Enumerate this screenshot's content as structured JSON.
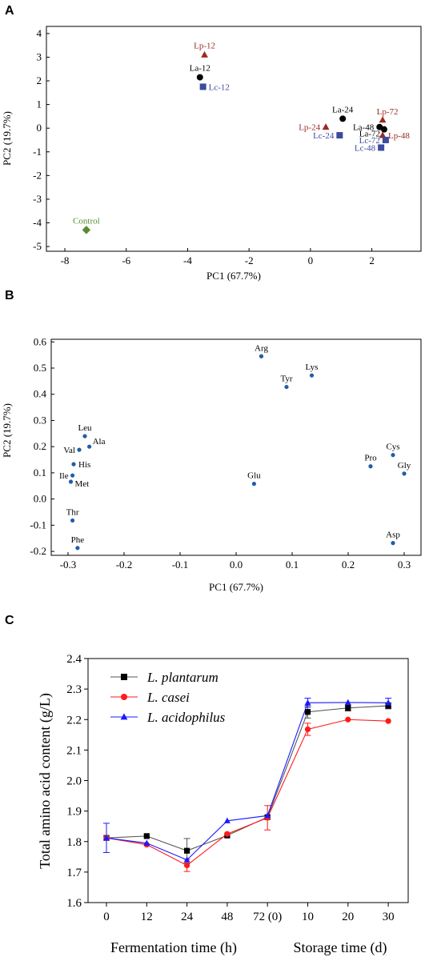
{
  "chart_data": [
    {
      "panel": "A",
      "type": "scatter",
      "xlabel": "PC1 (67.7%)",
      "ylabel": "PC2 (19.7%)",
      "xlim": [
        -8.6,
        3.6
      ],
      "ylim": [
        -5.2,
        4.3
      ],
      "xticks": [
        -8,
        -6,
        -4,
        -2,
        0,
        2
      ],
      "yticks": [
        -5,
        -4,
        -3,
        -2,
        -1,
        0,
        1,
        2,
        3,
        4
      ],
      "grid": false,
      "points": [
        {
          "label": "Lp-12",
          "x": -3.45,
          "y": 3.1,
          "marker": "triangle",
          "color": "#9b2b22",
          "label_pos": "above"
        },
        {
          "label": "La-12",
          "x": -3.6,
          "y": 2.15,
          "marker": "circle",
          "color": "#000000",
          "label_pos": "above"
        },
        {
          "label": "Lc-12",
          "x": -3.5,
          "y": 1.75,
          "marker": "square",
          "color": "#3c4aa0",
          "label_pos": "right"
        },
        {
          "label": "La-24",
          "x": 1.05,
          "y": 0.4,
          "marker": "circle",
          "color": "#000000",
          "label_pos": "above"
        },
        {
          "label": "Lp-24",
          "x": 0.5,
          "y": 0.05,
          "marker": "triangle",
          "color": "#9b2b22",
          "label_pos": "left"
        },
        {
          "label": "Lc-24",
          "x": 0.95,
          "y": -0.3,
          "marker": "square",
          "color": "#3c4aa0",
          "label_pos": "left"
        },
        {
          "label": "Lp-72",
          "x": 2.35,
          "y": 0.35,
          "marker": "triangle",
          "color": "#9b2b22",
          "label_pos": "above-right"
        },
        {
          "label": "La-48",
          "x": 2.25,
          "y": 0.05,
          "marker": "circle",
          "color": "#000000",
          "label_pos": "left"
        },
        {
          "label": "La-72",
          "x": 2.4,
          "y": -0.05,
          "marker": "circle",
          "color": "#000000",
          "label_pos": "left-below"
        },
        {
          "label": "Lp-48",
          "x": 2.35,
          "y": -0.3,
          "marker": "triangle",
          "color": "#9b2b22",
          "label_pos": "right"
        },
        {
          "label": "Lc-72",
          "x": 2.45,
          "y": -0.5,
          "marker": "square",
          "color": "#3c4aa0",
          "label_pos": "left"
        },
        {
          "label": "Lc-48",
          "x": 2.3,
          "y": -0.82,
          "marker": "square",
          "color": "#3c4aa0",
          "label_pos": "left"
        },
        {
          "label": "Control",
          "x": -7.3,
          "y": -4.3,
          "marker": "diamond",
          "color": "#5a8a2e",
          "label_pos": "above"
        }
      ]
    },
    {
      "panel": "B",
      "type": "scatter",
      "xlabel": "PC1 (67.7%)",
      "ylabel": "PC2 (19.7%)",
      "xlim": [
        -0.33,
        0.33
      ],
      "ylim": [
        -0.215,
        0.61
      ],
      "xticks": [
        -0.3,
        -0.2,
        -0.1,
        0.0,
        0.1,
        0.2,
        0.3
      ],
      "yticks": [
        -0.2,
        -0.1,
        0.0,
        0.1,
        0.2,
        0.3,
        0.4,
        0.5,
        0.6
      ],
      "grid": false,
      "color": "#1f5ea8",
      "points": [
        {
          "label": "Arg",
          "x": 0.045,
          "y": 0.545,
          "label_pos": "above"
        },
        {
          "label": "Lys",
          "x": 0.135,
          "y": 0.472,
          "label_pos": "above"
        },
        {
          "label": "Tyr",
          "x": 0.09,
          "y": 0.428,
          "label_pos": "above"
        },
        {
          "label": "Leu",
          "x": -0.27,
          "y": 0.24,
          "label_pos": "above"
        },
        {
          "label": "Ala",
          "x": -0.262,
          "y": 0.2,
          "label_pos": "right-up"
        },
        {
          "label": "Val",
          "x": -0.28,
          "y": 0.188,
          "label_pos": "left"
        },
        {
          "label": "His",
          "x": -0.29,
          "y": 0.133,
          "label_pos": "right"
        },
        {
          "label": "Ile",
          "x": -0.292,
          "y": 0.09,
          "label_pos": "left"
        },
        {
          "label": "Met",
          "x": -0.295,
          "y": 0.066,
          "label_pos": "right-below"
        },
        {
          "label": "Glu",
          "x": 0.032,
          "y": 0.058,
          "label_pos": "above"
        },
        {
          "label": "Pro",
          "x": 0.24,
          "y": 0.125,
          "label_pos": "above"
        },
        {
          "label": "Cys",
          "x": 0.28,
          "y": 0.168,
          "label_pos": "above"
        },
        {
          "label": "Gly",
          "x": 0.3,
          "y": 0.097,
          "label_pos": "above"
        },
        {
          "label": "Thr",
          "x": -0.292,
          "y": -0.082,
          "label_pos": "above"
        },
        {
          "label": "Asp",
          "x": 0.28,
          "y": -0.168,
          "label_pos": "above"
        },
        {
          "label": "Phe",
          "x": -0.283,
          "y": -0.187,
          "label_pos": "above"
        }
      ]
    },
    {
      "panel": "C",
      "type": "line",
      "ylabel": "Total amino acid content (g/L)",
      "xlabel_left": "Fermentation time (h)",
      "xlabel_right": "Storage time (d)",
      "categories": [
        "0",
        "12",
        "24",
        "48",
        "72 (0)",
        "10",
        "20",
        "30"
      ],
      "ylim": [
        1.6,
        2.4
      ],
      "yticks": [
        1.6,
        1.7,
        1.8,
        1.9,
        2.0,
        2.1,
        2.2,
        2.3,
        2.4
      ],
      "grid": false,
      "legend_position": "top-left",
      "series": [
        {
          "name": "L. plantarum",
          "marker": "square",
          "color": "#000000",
          "line_color": "#555555",
          "values": [
            1.812,
            1.818,
            1.77,
            1.82,
            1.88,
            2.225,
            2.238,
            2.245
          ],
          "errors": [
            0.0,
            0.0,
            0.04,
            0.0,
            0.0,
            0.02,
            0.01,
            0.01
          ]
        },
        {
          "name": "L. casei",
          "marker": "circle",
          "color": "#ff1a1a",
          "line_color": "#ff1a1a",
          "values": [
            1.812,
            1.79,
            1.722,
            1.825,
            1.878,
            2.168,
            2.2,
            2.195
          ],
          "errors": [
            0.0,
            0.0,
            0.02,
            0.0,
            0.04,
            0.02,
            0.0,
            0.0
          ]
        },
        {
          "name": "L. acidophilus",
          "marker": "triangle",
          "color": "#1a1aff",
          "line_color": "#1a1aff",
          "values": [
            1.812,
            1.795,
            1.74,
            1.868,
            1.885,
            2.255,
            2.256,
            2.255
          ],
          "errors": [
            0.048,
            0.0,
            0.0,
            0.0,
            0.0,
            0.015,
            0.0,
            0.015
          ]
        }
      ]
    }
  ]
}
